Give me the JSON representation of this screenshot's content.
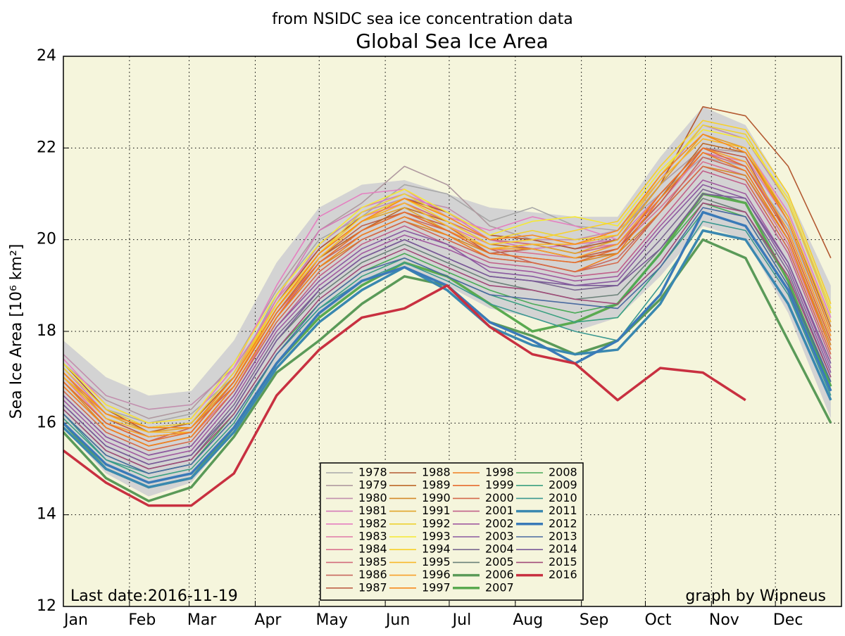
{
  "chart_data": {
    "type": "line",
    "subtitle": "from NSIDC sea ice concentration data",
    "title": "Global Sea Ice Area",
    "y_label": "Sea Ice Area [10⁶ km²]",
    "annotations": [
      "Last date:2016-11-19",
      "graph by Wipneus"
    ],
    "xlim": [
      0,
      365
    ],
    "xticks": [
      {
        "value": 0,
        "label": "Jan"
      },
      {
        "value": 31,
        "label": "Feb"
      },
      {
        "value": 59,
        "label": "Mar"
      },
      {
        "value": 90,
        "label": "Apr"
      },
      {
        "value": 120,
        "label": "May"
      },
      {
        "value": 151,
        "label": "Jun"
      },
      {
        "value": 181,
        "label": "Jul"
      },
      {
        "value": 212,
        "label": "Aug"
      },
      {
        "value": 243,
        "label": "Sep"
      },
      {
        "value": 273,
        "label": "Oct"
      },
      {
        "value": 304,
        "label": "Nov"
      },
      {
        "value": 334,
        "label": "Dec"
      }
    ],
    "ylim": [
      12,
      24
    ],
    "yticks": [
      12,
      14,
      16,
      18,
      20,
      22,
      24
    ],
    "grid": true,
    "legend": "lower center",
    "background": "#f5f5dc",
    "x": [
      0,
      20,
      40,
      60,
      80,
      100,
      120,
      140,
      160,
      180,
      200,
      220,
      240,
      260,
      280,
      300,
      320,
      340,
      360
    ],
    "range_band": {
      "color": "#d3d3d3",
      "upper": [
        17.8,
        17.0,
        16.6,
        16.7,
        17.8,
        19.5,
        20.7,
        21.2,
        21.3,
        21.0,
        20.7,
        20.6,
        20.5,
        20.5,
        21.8,
        22.9,
        22.5,
        21.0,
        19.0
      ],
      "lower": [
        15.9,
        14.9,
        14.4,
        14.7,
        15.8,
        17.2,
        18.3,
        19.0,
        19.4,
        19.0,
        18.5,
        18.3,
        18.0,
        18.3,
        19.2,
        20.3,
        20.0,
        18.4,
        16.1
      ]
    },
    "series": [
      {
        "name": "1978",
        "color": "#a8a8a8",
        "values": [
          17.2,
          16.3,
          16.0,
          16.2,
          17.0,
          18.8,
          20.0,
          20.5,
          21.2,
          21.0,
          20.4,
          20.7,
          20.3,
          20.2,
          21.0,
          21.8,
          21.6,
          20.3,
          18.0
        ]
      },
      {
        "name": "1979",
        "color": "#b09aa0",
        "values": [
          17.3,
          16.5,
          16.1,
          16.3,
          17.3,
          18.9,
          20.2,
          20.8,
          21.6,
          21.2,
          20.3,
          20.0,
          19.8,
          20.1,
          21.2,
          22.0,
          21.9,
          20.5,
          18.2
        ]
      },
      {
        "name": "1980",
        "color": "#c28fae",
        "values": [
          17.5,
          16.6,
          16.3,
          16.4,
          17.2,
          18.6,
          19.9,
          20.6,
          20.9,
          20.7,
          20.1,
          20.0,
          20.0,
          20.2,
          21.3,
          22.5,
          22.2,
          20.8,
          18.5
        ]
      },
      {
        "name": "1981",
        "color": "#d47ab8",
        "values": [
          17.2,
          16.2,
          15.9,
          16.0,
          17.1,
          18.7,
          20.2,
          20.7,
          21.0,
          20.6,
          20.0,
          19.8,
          19.9,
          20.0,
          21.0,
          22.0,
          21.8,
          20.4,
          18.0
        ]
      },
      {
        "name": "1982",
        "color": "#e57fc0",
        "values": [
          17.4,
          16.4,
          16.0,
          16.1,
          17.2,
          19.0,
          20.5,
          21.0,
          21.1,
          20.5,
          20.2,
          20.5,
          20.3,
          20.0,
          21.2,
          22.3,
          22.0,
          20.6,
          18.3
        ]
      },
      {
        "name": "1983",
        "color": "#e07aa8",
        "values": [
          17.0,
          16.0,
          15.6,
          15.9,
          17.0,
          18.7,
          19.8,
          20.5,
          20.8,
          20.3,
          19.9,
          20.0,
          19.8,
          19.9,
          20.8,
          21.9,
          21.7,
          20.2,
          17.9
        ]
      },
      {
        "name": "1984",
        "color": "#d9738f",
        "values": [
          16.8,
          15.9,
          15.5,
          15.7,
          16.7,
          18.3,
          19.6,
          20.2,
          20.6,
          20.2,
          19.8,
          19.7,
          19.6,
          19.8,
          20.7,
          21.7,
          21.4,
          19.9,
          17.6
        ]
      },
      {
        "name": "1985",
        "color": "#d26a7a",
        "values": [
          17.1,
          16.1,
          15.7,
          15.8,
          16.9,
          18.5,
          19.7,
          20.4,
          20.8,
          20.4,
          20.0,
          19.9,
          19.7,
          19.9,
          20.9,
          21.9,
          21.6,
          20.2,
          17.9
        ]
      },
      {
        "name": "1986",
        "color": "#c8665e",
        "values": [
          16.9,
          16.0,
          15.6,
          15.9,
          16.8,
          18.3,
          19.5,
          20.1,
          20.5,
          20.2,
          19.8,
          19.5,
          19.3,
          19.6,
          20.6,
          21.8,
          21.5,
          20.0,
          17.7
        ]
      },
      {
        "name": "1987",
        "color": "#bf6048",
        "values": [
          17.0,
          16.1,
          15.7,
          15.8,
          16.9,
          18.4,
          19.6,
          20.3,
          20.6,
          20.3,
          19.7,
          19.8,
          19.6,
          19.8,
          20.8,
          22.0,
          21.8,
          20.1,
          17.8
        ]
      },
      {
        "name": "1988",
        "color": "#b35a32",
        "values": [
          17.3,
          16.3,
          15.8,
          16.0,
          17.0,
          18.6,
          19.8,
          20.5,
          20.9,
          20.6,
          20.1,
          20.0,
          19.8,
          20.0,
          21.2,
          22.9,
          22.7,
          21.6,
          19.6
        ]
      },
      {
        "name": "1989",
        "color": "#bd6a2a",
        "values": [
          17.1,
          16.2,
          15.9,
          16.0,
          17.0,
          18.5,
          19.6,
          20.2,
          20.7,
          20.4,
          19.9,
          19.8,
          19.6,
          19.7,
          20.9,
          22.1,
          21.9,
          20.5,
          18.1
        ]
      },
      {
        "name": "1990",
        "color": "#d48a2a",
        "values": [
          16.9,
          15.9,
          15.5,
          15.7,
          16.8,
          18.3,
          19.4,
          20.0,
          20.4,
          20.1,
          19.7,
          19.6,
          19.5,
          19.7,
          20.6,
          21.6,
          21.4,
          20.0,
          17.7
        ]
      },
      {
        "name": "1991",
        "color": "#e0a52a",
        "values": [
          17.0,
          16.2,
          15.8,
          15.9,
          16.9,
          18.5,
          19.6,
          20.4,
          20.7,
          20.2,
          19.8,
          19.9,
          19.7,
          20.0,
          21.2,
          22.3,
          22.0,
          20.4,
          18.0
        ]
      },
      {
        "name": "1992",
        "color": "#eed232",
        "values": [
          17.2,
          16.3,
          15.9,
          16.0,
          17.1,
          18.6,
          19.7,
          20.6,
          21.0,
          20.5,
          20.0,
          20.2,
          20.0,
          20.1,
          21.4,
          22.5,
          22.3,
          20.8,
          18.4
        ]
      },
      {
        "name": "1993",
        "color": "#f5e832",
        "values": [
          17.3,
          16.4,
          16.0,
          16.1,
          17.3,
          18.8,
          19.9,
          20.7,
          21.1,
          20.6,
          20.1,
          20.4,
          20.5,
          20.3,
          21.5,
          22.4,
          22.2,
          20.9,
          18.5
        ]
      },
      {
        "name": "1994",
        "color": "#f7d02a",
        "values": [
          17.1,
          16.2,
          15.9,
          15.9,
          17.0,
          18.6,
          19.7,
          20.5,
          20.9,
          20.4,
          19.9,
          20.0,
          20.2,
          20.4,
          21.6,
          22.6,
          22.4,
          21.0,
          18.6
        ]
      },
      {
        "name": "1995",
        "color": "#f7b82a",
        "values": [
          17.0,
          16.1,
          15.8,
          15.8,
          16.9,
          18.5,
          19.6,
          20.4,
          20.8,
          20.3,
          19.8,
          19.9,
          19.9,
          20.1,
          21.3,
          22.2,
          22.0,
          20.5,
          18.2
        ]
      },
      {
        "name": "1996",
        "color": "#f7a02a",
        "values": [
          16.9,
          16.0,
          15.7,
          15.8,
          16.9,
          18.4,
          19.5,
          20.2,
          20.6,
          20.2,
          19.8,
          19.8,
          19.6,
          19.9,
          21.0,
          22.0,
          21.7,
          20.2,
          17.9
        ]
      },
      {
        "name": "1997",
        "color": "#f78a1e",
        "values": [
          17.1,
          16.2,
          15.9,
          15.9,
          17.0,
          18.5,
          19.7,
          20.4,
          20.9,
          20.5,
          20.0,
          20.1,
          19.9,
          20.2,
          21.4,
          22.3,
          21.9,
          20.4,
          18.0
        ]
      },
      {
        "name": "1998",
        "color": "#f08020",
        "values": [
          16.8,
          15.9,
          15.5,
          15.7,
          16.8,
          18.3,
          19.4,
          20.1,
          20.5,
          20.1,
          19.6,
          19.5,
          19.3,
          19.7,
          20.9,
          21.9,
          21.5,
          20.0,
          17.6
        ]
      },
      {
        "name": "1999",
        "color": "#e66c2e",
        "values": [
          16.9,
          16.0,
          15.6,
          15.8,
          16.9,
          18.4,
          19.5,
          20.2,
          20.6,
          20.2,
          19.7,
          19.6,
          19.5,
          19.8,
          21.0,
          22.0,
          21.6,
          20.1,
          17.8
        ]
      },
      {
        "name": "2000",
        "color": "#d4684a",
        "values": [
          16.7,
          15.8,
          15.4,
          15.6,
          16.7,
          18.2,
          19.3,
          20.0,
          20.4,
          20.0,
          19.6,
          19.5,
          19.3,
          19.5,
          20.6,
          21.6,
          21.3,
          19.8,
          17.5
        ]
      },
      {
        "name": "2001",
        "color": "#c0608a",
        "values": [
          16.6,
          15.7,
          15.3,
          15.5,
          16.6,
          18.1,
          19.2,
          19.9,
          20.3,
          19.9,
          19.5,
          19.4,
          19.2,
          19.3,
          20.4,
          21.5,
          21.2,
          19.7,
          17.4
        ]
      },
      {
        "name": "2002",
        "color": "#a05aa0",
        "values": [
          16.5,
          15.6,
          15.2,
          15.4,
          16.5,
          18.0,
          19.0,
          19.7,
          20.1,
          19.8,
          19.4,
          19.3,
          19.1,
          19.2,
          20.3,
          21.3,
          21.0,
          19.5,
          17.2
        ]
      },
      {
        "name": "2003",
        "color": "#8a5aa0",
        "values": [
          16.6,
          15.7,
          15.3,
          15.5,
          16.6,
          18.1,
          19.1,
          19.8,
          20.2,
          19.9,
          19.3,
          19.2,
          19.0,
          19.1,
          20.2,
          21.2,
          20.9,
          19.4,
          17.1
        ]
      },
      {
        "name": "2004",
        "color": "#7a6890",
        "values": [
          16.4,
          15.5,
          15.1,
          15.3,
          16.4,
          17.9,
          18.9,
          19.6,
          20.0,
          19.6,
          19.2,
          19.1,
          18.9,
          19.0,
          20.0,
          21.1,
          20.8,
          19.3,
          17.0
        ]
      },
      {
        "name": "2005",
        "color": "#6a8078",
        "values": [
          16.3,
          15.4,
          15.0,
          15.2,
          16.3,
          17.8,
          18.8,
          19.5,
          19.9,
          19.5,
          19.1,
          18.9,
          18.7,
          18.8,
          19.8,
          20.9,
          20.6,
          19.1,
          16.9
        ]
      },
      {
        "name": "2006",
        "color": "#5a9a58",
        "linewidth": 3.5,
        "values": [
          15.8,
          14.8,
          14.3,
          14.6,
          15.7,
          17.1,
          17.8,
          18.6,
          19.2,
          19.0,
          18.2,
          17.9,
          17.5,
          17.8,
          18.7,
          20.0,
          19.6,
          17.8,
          16.0
        ]
      },
      {
        "name": "2007",
        "color": "#5aaa50",
        "linewidth": 3.5,
        "values": [
          16.0,
          15.0,
          14.6,
          14.8,
          15.9,
          17.3,
          18.3,
          19.0,
          19.5,
          19.2,
          18.6,
          18.0,
          18.2,
          18.6,
          19.7,
          21.0,
          20.8,
          19.1,
          16.8
        ]
      },
      {
        "name": "2008",
        "color": "#4aaa58",
        "values": [
          16.2,
          15.3,
          14.9,
          15.1,
          16.2,
          17.6,
          18.6,
          19.3,
          19.7,
          19.3,
          18.9,
          18.6,
          18.4,
          18.6,
          19.7,
          20.8,
          20.5,
          19.0,
          16.8
        ]
      },
      {
        "name": "2009",
        "color": "#3aa080",
        "values": [
          16.1,
          15.2,
          14.8,
          15.0,
          16.0,
          17.5,
          18.5,
          19.2,
          19.6,
          19.2,
          18.8,
          18.5,
          18.2,
          18.3,
          19.4,
          20.6,
          20.3,
          18.9,
          16.7
        ]
      },
      {
        "name": "2010",
        "color": "#3a9890",
        "values": [
          16.2,
          15.2,
          14.9,
          15.1,
          16.1,
          17.5,
          18.5,
          19.1,
          19.5,
          19.1,
          18.6,
          18.3,
          18.0,
          17.8,
          19.0,
          20.4,
          20.2,
          18.8,
          16.6
        ]
      },
      {
        "name": "2011",
        "color": "#3a88b0",
        "linewidth": 3.5,
        "values": [
          15.9,
          15.0,
          14.6,
          14.8,
          15.8,
          17.2,
          18.2,
          18.9,
          19.4,
          18.9,
          18.1,
          17.7,
          17.5,
          17.6,
          18.6,
          20.2,
          20.0,
          18.6,
          16.5
        ]
      },
      {
        "name": "2012",
        "color": "#3a7ab8",
        "linewidth": 3.5,
        "values": [
          16.0,
          15.1,
          14.7,
          14.9,
          15.9,
          17.3,
          18.4,
          19.1,
          19.4,
          19.0,
          18.2,
          17.8,
          17.3,
          17.8,
          18.8,
          20.6,
          20.3,
          18.9,
          16.7
        ]
      },
      {
        "name": "2013",
        "color": "#4a6aa0",
        "values": [
          16.2,
          15.3,
          14.9,
          15.1,
          16.1,
          17.5,
          18.6,
          19.3,
          19.6,
          19.2,
          18.8,
          18.7,
          18.6,
          18.5,
          19.4,
          20.7,
          20.5,
          19.0,
          16.9
        ]
      },
      {
        "name": "2014",
        "color": "#7a5a98",
        "values": [
          16.4,
          15.5,
          15.1,
          15.3,
          16.3,
          17.8,
          18.9,
          19.6,
          20.0,
          19.6,
          19.2,
          19.1,
          19.0,
          19.0,
          19.8,
          21.0,
          20.9,
          19.5,
          17.3
        ]
      },
      {
        "name": "2015",
        "color": "#a04a78",
        "values": [
          16.3,
          15.4,
          15.0,
          15.2,
          16.2,
          17.6,
          18.7,
          19.4,
          19.8,
          19.4,
          19.0,
          18.9,
          18.7,
          18.6,
          19.5,
          20.8,
          20.6,
          19.2,
          17.0
        ]
      },
      {
        "name": "2016",
        "color": "#c83040",
        "linewidth": 3.5,
        "values": [
          15.4,
          14.7,
          14.2,
          14.2,
          14.9,
          16.6,
          17.6,
          18.3,
          18.5,
          19.0,
          18.1,
          17.5,
          17.3,
          16.5,
          17.2,
          17.1,
          16.5,
          null,
          null
        ]
      }
    ]
  }
}
